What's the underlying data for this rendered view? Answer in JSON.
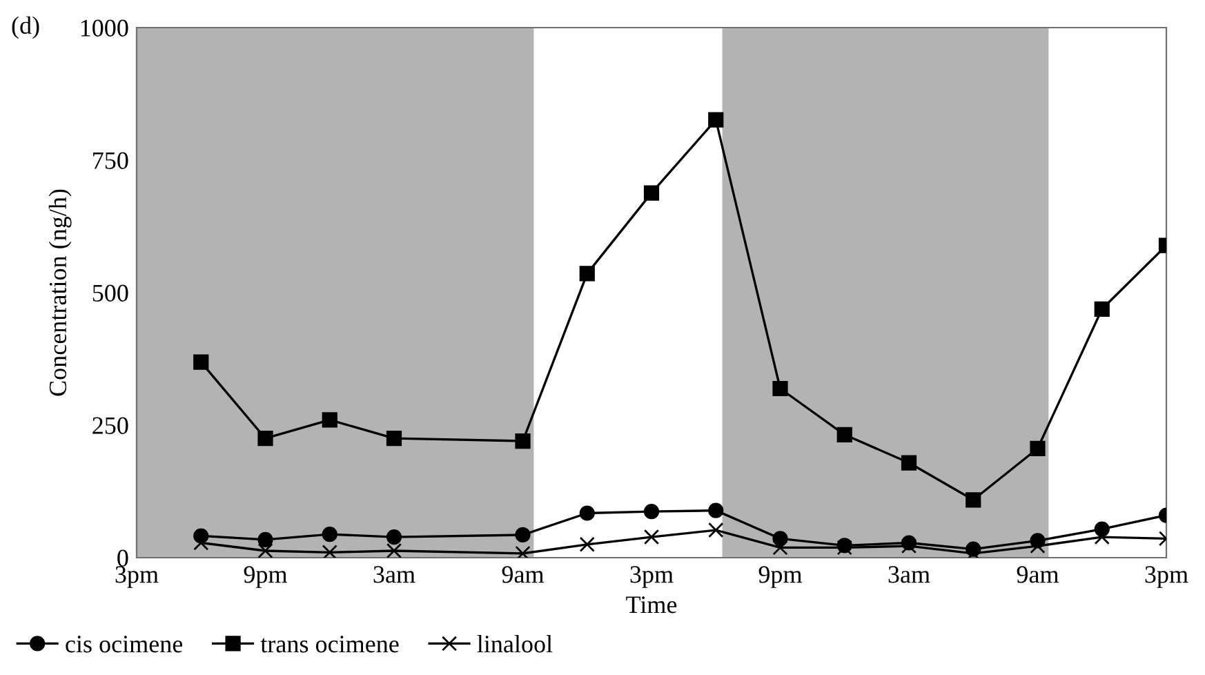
{
  "chart_data": {
    "type": "line",
    "title": "(d)",
    "xlabel": "Time",
    "ylabel": "Concentration (ng/h)",
    "categories": [
      "3pm",
      null,
      "9pm",
      null,
      "3am",
      null,
      "9am",
      null,
      "3pm",
      null,
      "9pm",
      null,
      "3am",
      null,
      "9am",
      null,
      "3pm"
    ],
    "series": [
      {
        "name": "cis ocimene",
        "color": "#000000",
        "marker": "circle",
        "values": [
          null,
          41,
          34,
          44,
          39,
          null,
          43,
          84,
          87,
          89,
          36,
          23,
          28,
          16,
          32,
          54,
          80
        ]
      },
      {
        "name": "trans ocimene",
        "color": "#000000",
        "marker": "square",
        "values": [
          null,
          369,
          225,
          260,
          225,
          null,
          220,
          536,
          688,
          826,
          319,
          232,
          179,
          109,
          206,
          469,
          589
        ]
      },
      {
        "name": "linalool",
        "color": "#000000",
        "marker": "cross",
        "values": [
          null,
          28,
          13,
          10,
          13,
          null,
          8,
          25,
          39,
          52,
          19,
          19,
          22,
          8,
          22,
          39,
          36
        ]
      }
    ],
    "ylim": [
      0,
      1000
    ],
    "yticks": [
      0,
      250,
      500,
      750,
      1000
    ],
    "grid": false,
    "legend": "bottom left",
    "line_style": "solid"
  }
}
